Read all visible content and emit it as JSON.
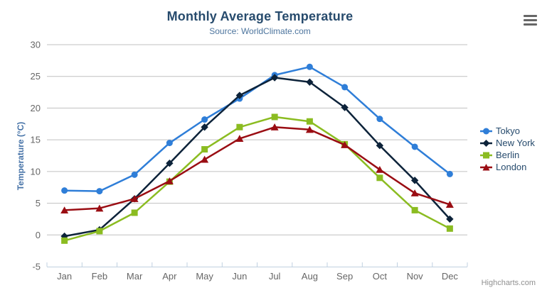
{
  "credits": "Highcharts.com",
  "icons": {
    "export_menu": "hamburger-icon"
  },
  "chart_data": {
    "type": "line",
    "title": "Monthly Average Temperature",
    "subtitle": "Source: WorldClimate.com",
    "categories": [
      "Jan",
      "Feb",
      "Mar",
      "Apr",
      "May",
      "Jun",
      "Jul",
      "Aug",
      "Sep",
      "Oct",
      "Nov",
      "Dec"
    ],
    "series": [
      {
        "name": "Tokyo",
        "color": "#2f7ed8",
        "marker": "circle",
        "values": [
          7.0,
          6.9,
          9.5,
          14.5,
          18.2,
          21.5,
          25.2,
          26.5,
          23.3,
          18.3,
          13.9,
          9.6
        ]
      },
      {
        "name": "New York",
        "color": "#0d233a",
        "marker": "diamond",
        "values": [
          -0.2,
          0.8,
          5.7,
          11.3,
          17.0,
          22.0,
          24.8,
          24.1,
          20.1,
          14.1,
          8.6,
          2.5
        ]
      },
      {
        "name": "Berlin",
        "color": "#8bbc21",
        "marker": "square",
        "values": [
          -0.9,
          0.6,
          3.5,
          8.4,
          13.5,
          17.0,
          18.6,
          17.9,
          14.3,
          9.0,
          3.9,
          1.0
        ]
      },
      {
        "name": "London",
        "color": "#9a0d13",
        "marker": "triangle",
        "values": [
          3.9,
          4.2,
          5.7,
          8.5,
          11.9,
          15.2,
          17.0,
          16.6,
          14.2,
          10.3,
          6.6,
          4.8
        ]
      }
    ],
    "xlabel": "",
    "ylabel": "Temperature (°C)",
    "ylim": [
      -5,
      30
    ],
    "ytick_step": 5,
    "grid": true,
    "legend_position": "right",
    "colors": {
      "title": "#274b6d",
      "subtitle": "#4d759e",
      "axis_title": "#4572a7",
      "tick_label": "#666666",
      "gridline": "#c0c0c0",
      "axis_line": "#c0d0e0",
      "credits": "#909090"
    }
  }
}
